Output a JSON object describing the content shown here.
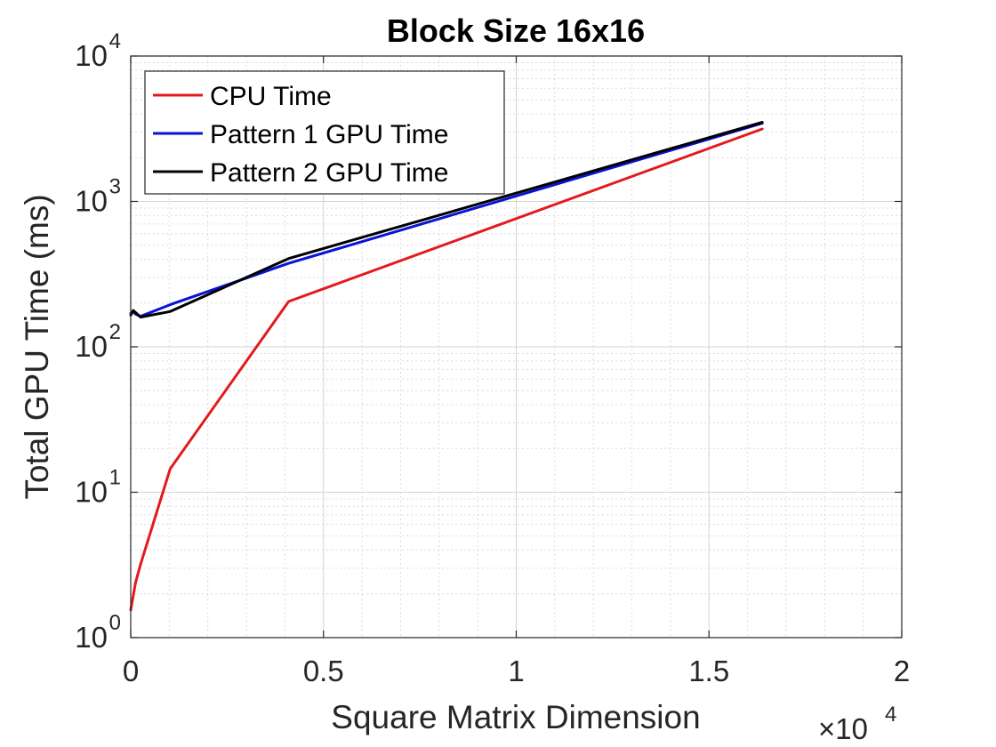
{
  "chart_data": {
    "type": "line",
    "title": "Block Size 16x16",
    "xlabel": "Square Matrix Dimension",
    "ylabel": "Total GPU Time (ms)",
    "x_exponent_label": {
      "prefix": "×10",
      "exp": "4"
    },
    "xlim": [
      0,
      20000
    ],
    "ylim": [
      1,
      10000
    ],
    "yscale": "log",
    "x_ticks": [
      0,
      5000,
      10000,
      15000,
      20000
    ],
    "x_tick_labels": [
      "0",
      "0.5",
      "1",
      "1.5",
      "2"
    ],
    "y_ticks": [
      1,
      10,
      100,
      1000,
      10000
    ],
    "y_tick_labels": [
      {
        "base": "10",
        "exp": "0"
      },
      {
        "base": "10",
        "exp": "1"
      },
      {
        "base": "10",
        "exp": "2"
      },
      {
        "base": "10",
        "exp": "3"
      },
      {
        "base": "10",
        "exp": "4"
      }
    ],
    "grid": true,
    "minor_grid": true,
    "legend_position": "top-left",
    "series": [
      {
        "name": "CPU Time",
        "color": "#e31a1c",
        "x": [
          0,
          128,
          256,
          1024,
          4096,
          16384
        ],
        "y": [
          1.55,
          2.4,
          3.2,
          14.5,
          205,
          3150
        ]
      },
      {
        "name": "Pattern 1 GPU Time",
        "color": "#0a12d6",
        "x": [
          0,
          64,
          128,
          256,
          1024,
          4096,
          16384
        ],
        "y": [
          170,
          175,
          168,
          162,
          195,
          375,
          3450
        ]
      },
      {
        "name": "Pattern 2 GPU Time",
        "color": "#000000",
        "x": [
          0,
          64,
          128,
          256,
          1024,
          4096,
          16384
        ],
        "y": [
          165,
          178,
          172,
          160,
          175,
          405,
          3500
        ]
      }
    ]
  }
}
